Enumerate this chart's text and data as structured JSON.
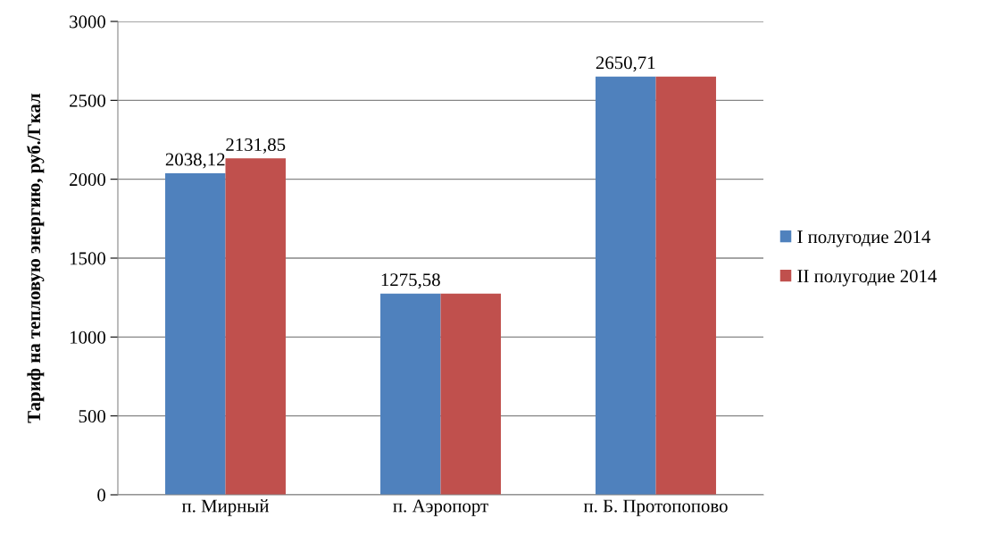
{
  "chart_data": {
    "type": "bar",
    "ylabel": "Тариф на тепловую энергию, руб./Гкал",
    "categories": [
      "п. Мирный",
      "п. Аэропорт",
      "п. Б. Протопопово"
    ],
    "series": [
      {
        "name": "I полугодие 2014",
        "color": "#4f81bd",
        "values": [
          2038.12,
          1275.58,
          2650.71
        ],
        "value_labels": [
          "2038,12",
          "1275,58",
          "2650,71"
        ]
      },
      {
        "name": "II полугодие 2014",
        "color": "#c0504d",
        "values": [
          2131.85,
          1275.58,
          2650.71
        ],
        "value_labels": [
          "2131,85",
          null,
          null
        ]
      }
    ],
    "ylim": [
      0,
      3000
    ],
    "yticks": [
      0,
      500,
      1000,
      1500,
      2000,
      2500,
      3000
    ],
    "grid": "y",
    "legend": "right"
  }
}
